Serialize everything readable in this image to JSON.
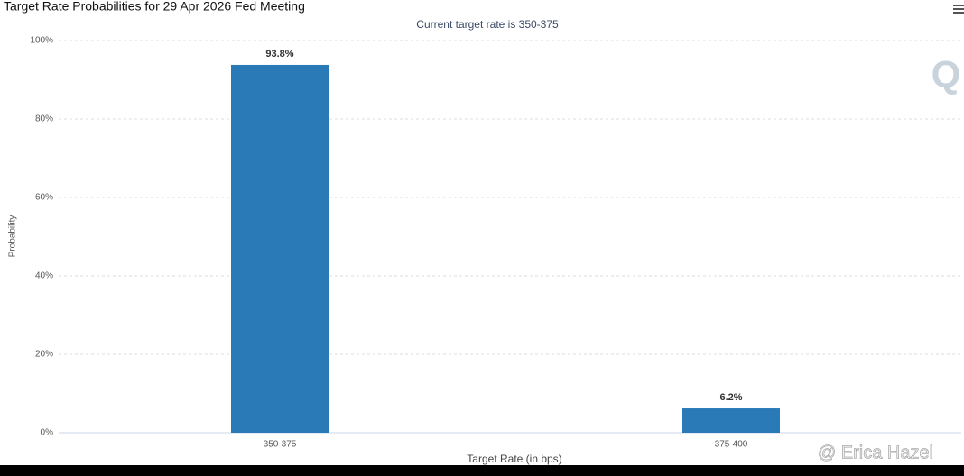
{
  "chart_data": {
    "type": "bar",
    "title": "Target Rate Probabilities for 29 Apr 2026 Fed Meeting",
    "subtitle": "Current target rate is 350-375",
    "x_label": "Target Rate (in bps)",
    "y_label": "Probability",
    "categories": [
      "350-375",
      "375-400"
    ],
    "values": [
      93.8,
      6.2
    ],
    "value_labels": [
      "93.8%",
      "6.2%"
    ],
    "color": "#2a7ab8",
    "ylim": [
      0,
      100
    ],
    "yticks": [
      {
        "value": 0,
        "label": "0%"
      },
      {
        "value": 20,
        "label": "20%"
      },
      {
        "value": 40,
        "label": "40%"
      },
      {
        "value": 60,
        "label": "60%"
      },
      {
        "value": 80,
        "label": "80%"
      },
      {
        "value": 100,
        "label": "100%"
      }
    ],
    "grid": true,
    "logo": "Q",
    "watermark": "@ Erica Hazel"
  }
}
